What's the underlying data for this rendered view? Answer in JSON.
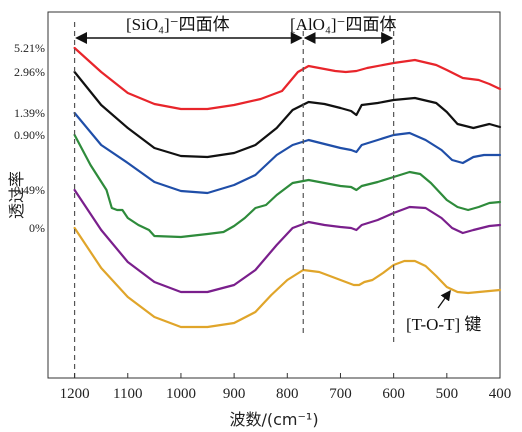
{
  "chart_data": {
    "type": "line",
    "title": "",
    "xlabel": "波数/(cm⁻¹)",
    "ylabel": "透过率",
    "xlim": [
      1250,
      400
    ],
    "x_reversed": true,
    "x_ticks": [
      "1200",
      "1100",
      "1000",
      "900",
      "800",
      "700",
      "600",
      "500",
      "400"
    ],
    "x_tick_values": [
      1200,
      1100,
      1000,
      900,
      800,
      700,
      600,
      500,
      400
    ],
    "y_ticks": false,
    "grid": false,
    "series": [
      {
        "name": "5.21%",
        "color": "#e8252b",
        "points": [
          [
            1200,
            48
          ],
          [
            1150,
            72
          ],
          [
            1100,
            93
          ],
          [
            1050,
            104
          ],
          [
            1000,
            109
          ],
          [
            950,
            109
          ],
          [
            900,
            105
          ],
          [
            850,
            99
          ],
          [
            810,
            91
          ],
          [
            780,
            72
          ],
          [
            760,
            66
          ],
          [
            740,
            68
          ],
          [
            710,
            71
          ],
          [
            690,
            72
          ],
          [
            670,
            71
          ],
          [
            650,
            68
          ],
          [
            600,
            63
          ],
          [
            560,
            60
          ],
          [
            520,
            65
          ],
          [
            500,
            70
          ],
          [
            470,
            78
          ],
          [
            440,
            80
          ],
          [
            420,
            84
          ],
          [
            400,
            89
          ]
        ]
      },
      {
        "name": "2.96%",
        "color": "#111111",
        "points": [
          [
            1200,
            72
          ],
          [
            1150,
            105
          ],
          [
            1100,
            128
          ],
          [
            1050,
            148
          ],
          [
            1000,
            156
          ],
          [
            950,
            157
          ],
          [
            900,
            153
          ],
          [
            860,
            145
          ],
          [
            820,
            128
          ],
          [
            790,
            110
          ],
          [
            760,
            102
          ],
          [
            730,
            104
          ],
          [
            700,
            108
          ],
          [
            680,
            111
          ],
          [
            670,
            115
          ],
          [
            660,
            105
          ],
          [
            630,
            103
          ],
          [
            600,
            100
          ],
          [
            560,
            98
          ],
          [
            520,
            103
          ],
          [
            500,
            112
          ],
          [
            480,
            124
          ],
          [
            450,
            128
          ],
          [
            420,
            124
          ],
          [
            400,
            127
          ]
        ]
      },
      {
        "name": "1.39%",
        "color": "#1f4ea8",
        "points": [
          [
            1200,
            113
          ],
          [
            1150,
            145
          ],
          [
            1100,
            163
          ],
          [
            1050,
            182
          ],
          [
            1000,
            191
          ],
          [
            950,
            193
          ],
          [
            900,
            185
          ],
          [
            860,
            175
          ],
          [
            820,
            155
          ],
          [
            790,
            145
          ],
          [
            760,
            140
          ],
          [
            730,
            144
          ],
          [
            700,
            148
          ],
          [
            680,
            150
          ],
          [
            670,
            152
          ],
          [
            660,
            145
          ],
          [
            630,
            140
          ],
          [
            600,
            135
          ],
          [
            570,
            133
          ],
          [
            540,
            140
          ],
          [
            510,
            150
          ],
          [
            490,
            160
          ],
          [
            470,
            163
          ],
          [
            450,
            157
          ],
          [
            430,
            155
          ],
          [
            400,
            155
          ]
        ]
      },
      {
        "name": "0.90%",
        "color": "#2e8b3b",
        "points": [
          [
            1200,
            135
          ],
          [
            1170,
            165
          ],
          [
            1140,
            190
          ],
          [
            1130,
            208
          ],
          [
            1120,
            210
          ],
          [
            1110,
            210
          ],
          [
            1100,
            218
          ],
          [
            1080,
            225
          ],
          [
            1060,
            230
          ],
          [
            1050,
            236
          ],
          [
            1000,
            237
          ],
          [
            950,
            234
          ],
          [
            920,
            232
          ],
          [
            900,
            226
          ],
          [
            880,
            218
          ],
          [
            860,
            208
          ],
          [
            840,
            205
          ],
          [
            820,
            195
          ],
          [
            790,
            183
          ],
          [
            760,
            180
          ],
          [
            730,
            183
          ],
          [
            700,
            186
          ],
          [
            680,
            187
          ],
          [
            670,
            190
          ],
          [
            660,
            186
          ],
          [
            630,
            182
          ],
          [
            600,
            177
          ],
          [
            570,
            172
          ],
          [
            550,
            174
          ],
          [
            530,
            183
          ],
          [
            500,
            200
          ],
          [
            480,
            207
          ],
          [
            460,
            210
          ],
          [
            440,
            207
          ],
          [
            420,
            203
          ],
          [
            400,
            202
          ]
        ]
      },
      {
        "name": "0.49%",
        "color": "#7a1f8c",
        "points": [
          [
            1200,
            190
          ],
          [
            1150,
            230
          ],
          [
            1100,
            262
          ],
          [
            1050,
            282
          ],
          [
            1000,
            292
          ],
          [
            950,
            292
          ],
          [
            900,
            285
          ],
          [
            860,
            270
          ],
          [
            820,
            245
          ],
          [
            790,
            228
          ],
          [
            760,
            222
          ],
          [
            730,
            225
          ],
          [
            700,
            227
          ],
          [
            680,
            228
          ],
          [
            670,
            230
          ],
          [
            660,
            225
          ],
          [
            630,
            220
          ],
          [
            600,
            213
          ],
          [
            570,
            207
          ],
          [
            540,
            208
          ],
          [
            510,
            218
          ],
          [
            490,
            228
          ],
          [
            470,
            233
          ],
          [
            450,
            230
          ],
          [
            420,
            226
          ],
          [
            400,
            225
          ]
        ]
      },
      {
        "name": "0%",
        "color": "#e0a52a",
        "points": [
          [
            1200,
            228
          ],
          [
            1150,
            268
          ],
          [
            1100,
            297
          ],
          [
            1050,
            317
          ],
          [
            1000,
            327
          ],
          [
            950,
            327
          ],
          [
            900,
            323
          ],
          [
            860,
            312
          ],
          [
            830,
            295
          ],
          [
            800,
            280
          ],
          [
            770,
            270
          ],
          [
            740,
            272
          ],
          [
            710,
            278
          ],
          [
            690,
            282
          ],
          [
            675,
            285
          ],
          [
            665,
            285
          ],
          [
            655,
            282
          ],
          [
            640,
            280
          ],
          [
            620,
            273
          ],
          [
            600,
            265
          ],
          [
            580,
            261
          ],
          [
            560,
            261
          ],
          [
            540,
            266
          ],
          [
            520,
            276
          ],
          [
            500,
            287
          ],
          [
            480,
            292
          ],
          [
            460,
            293
          ],
          [
            440,
            292
          ],
          [
            420,
            291
          ],
          [
            400,
            290
          ]
        ]
      }
    ],
    "annotations": [
      {
        "text": "[SiO₄]⁻四面体",
        "from": 1200,
        "to": 770
      },
      {
        "text": "[AlO₄]⁻四面体",
        "from": 770,
        "to": 600
      },
      {
        "text": "[T-O-T] 键",
        "points_to": 490
      }
    ],
    "guide_lines_x": [
      1200,
      770,
      600
    ]
  }
}
